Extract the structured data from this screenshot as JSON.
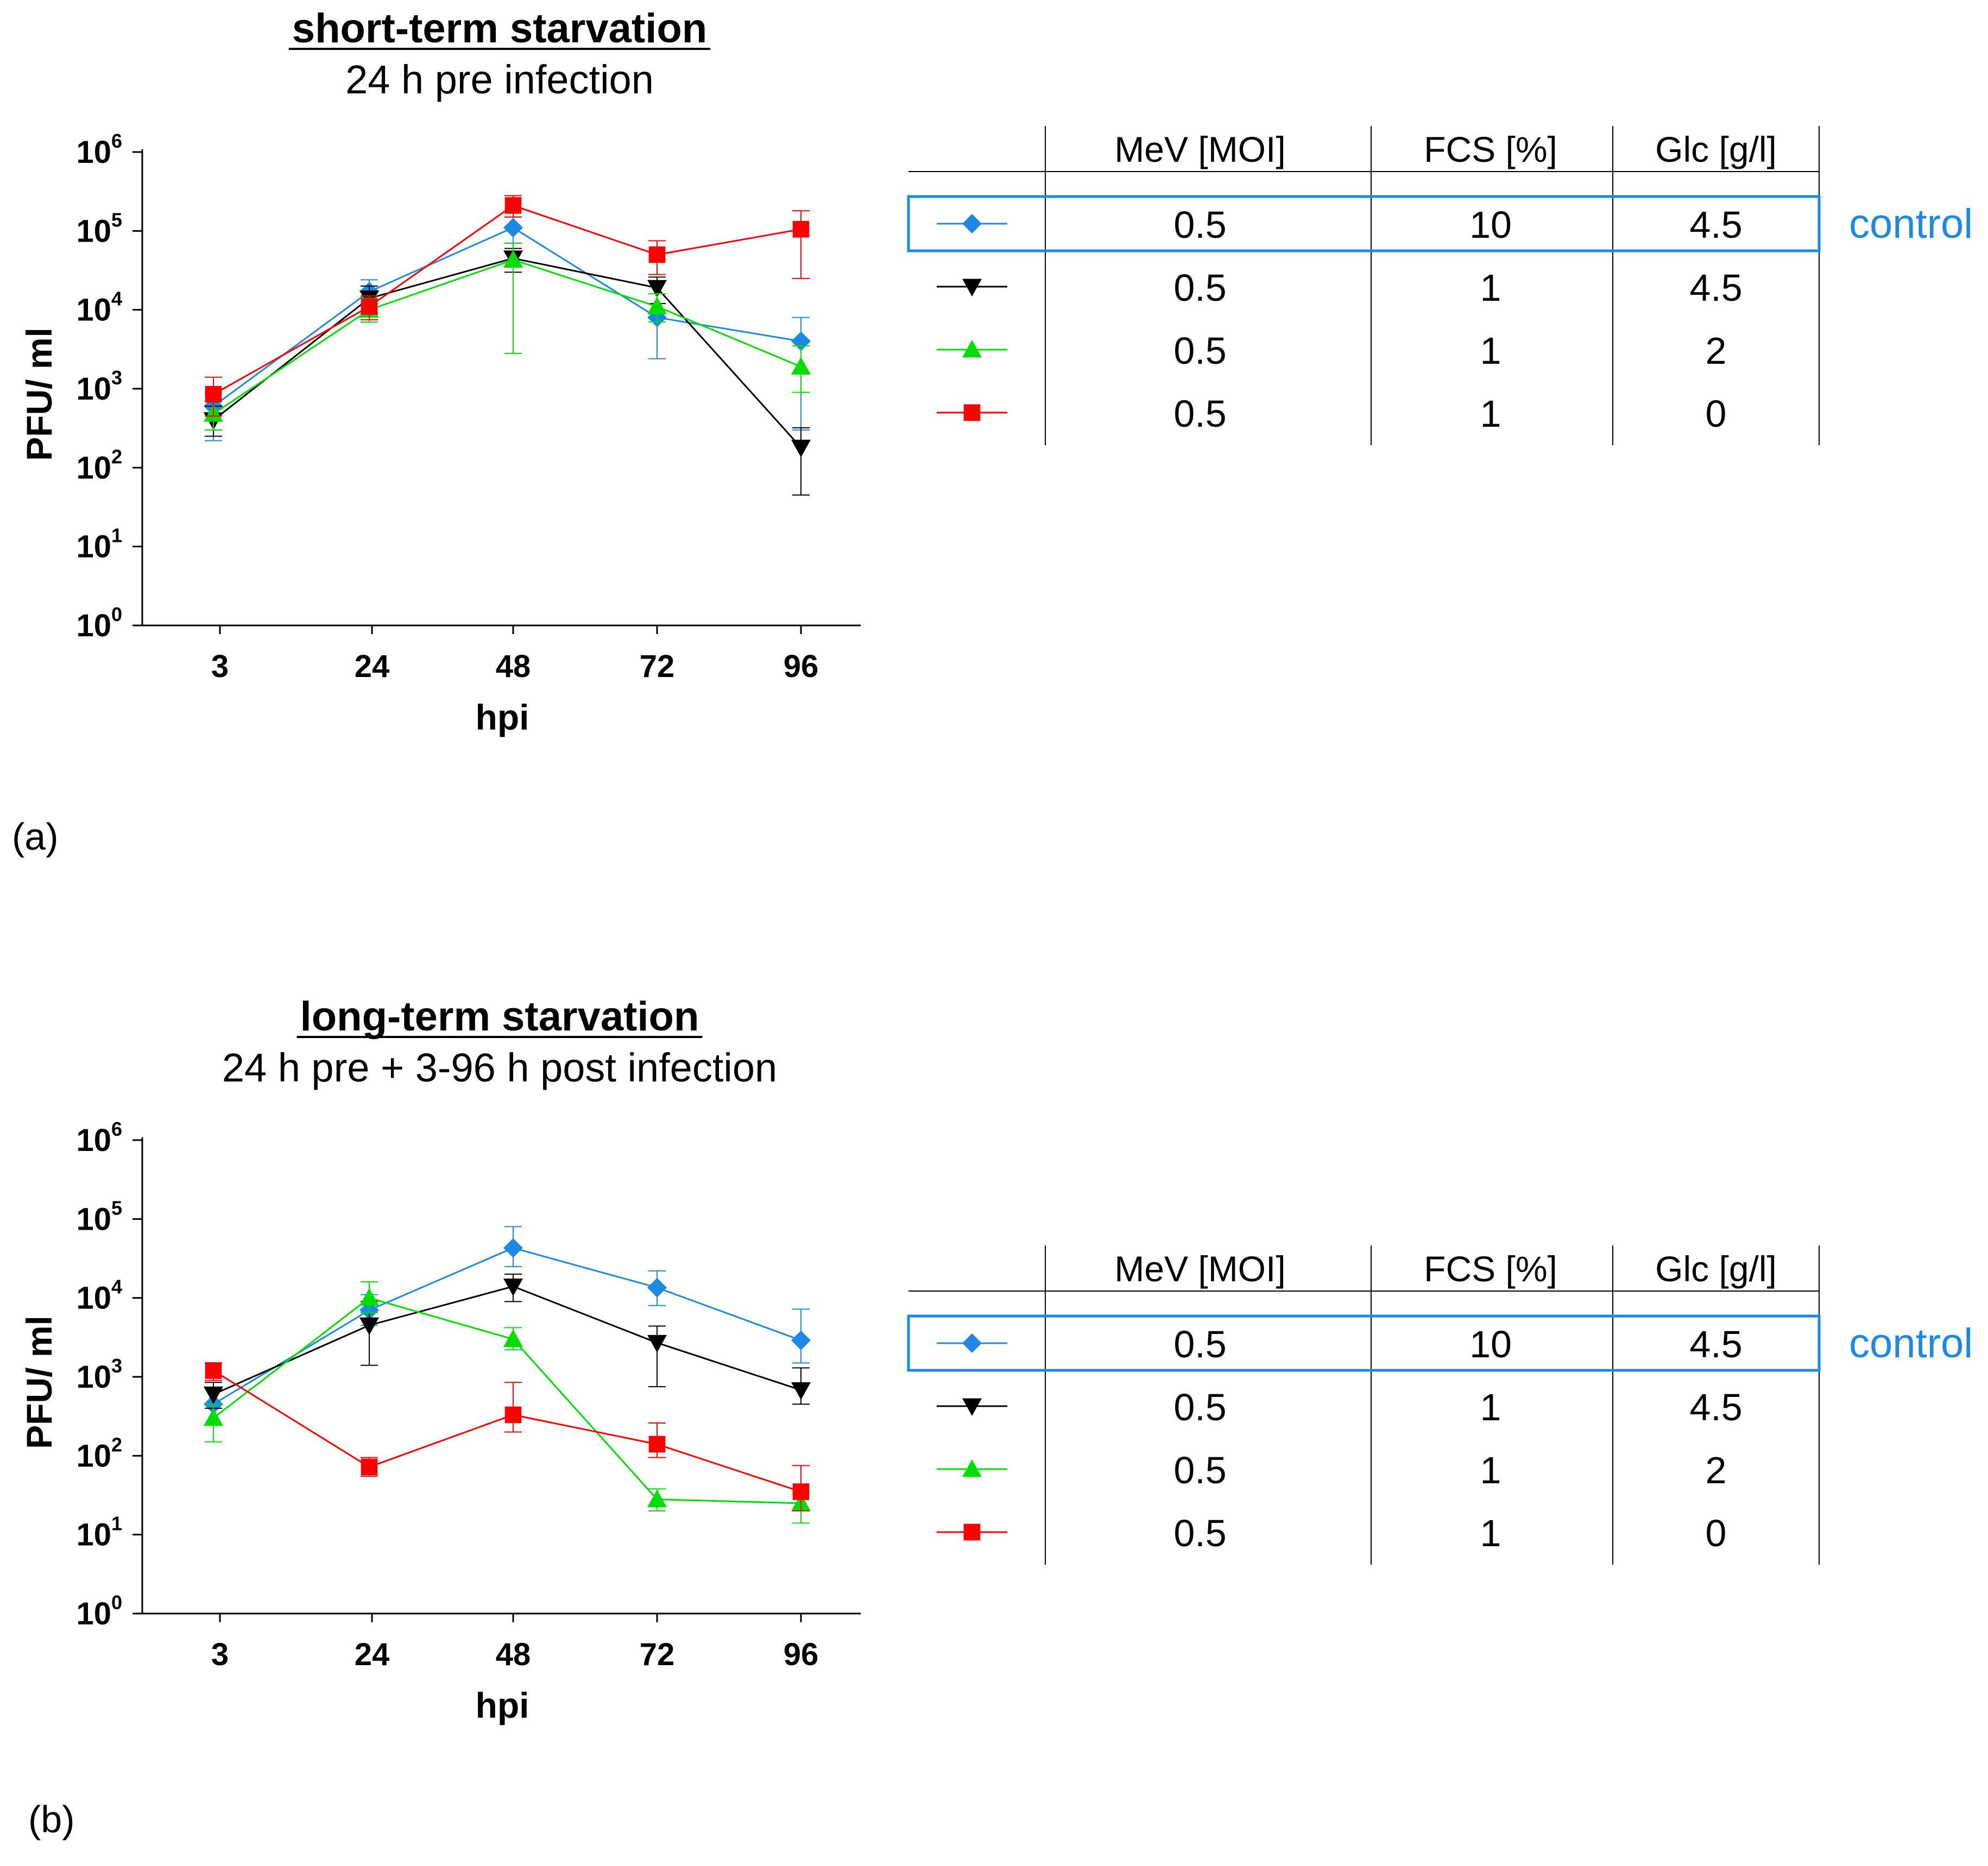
{
  "colors": {
    "control": "#1e88e5",
    "fcs1_glc45": "#000000",
    "fcs1_glc2": "#00dd00",
    "fcs1_glc0": "#ff0000"
  },
  "table": {
    "columns": [
      "MeV [MOI]",
      "FCS [%]",
      "Glc [g/l]"
    ],
    "rows": [
      {
        "marker": "diamond",
        "color": "#1e88e5",
        "cells": [
          "0.5",
          "10",
          "4.5"
        ],
        "highlight": true
      },
      {
        "marker": "triangle-down",
        "color": "#000000",
        "cells": [
          "0.5",
          "1",
          "4.5"
        ],
        "highlight": false
      },
      {
        "marker": "triangle-up",
        "color": "#00dd00",
        "cells": [
          "0.5",
          "1",
          "2"
        ],
        "highlight": false
      },
      {
        "marker": "square",
        "color": "#ff0000",
        "cells": [
          "0.5",
          "1",
          "0"
        ],
        "highlight": false
      }
    ],
    "control_label": "control"
  },
  "chart_data": [
    {
      "type": "line",
      "panel_label": "(a)",
      "title": "short-term starvation",
      "subtitle": "24 h pre infection",
      "xlabel": "hpi",
      "ylabel": "PFU/ ml",
      "yscale": "log",
      "ylim": [
        1,
        1000000
      ],
      "y_ticks": [
        {
          "base": "10",
          "exp": "0"
        },
        {
          "base": "10",
          "exp": "1"
        },
        {
          "base": "10",
          "exp": "2"
        },
        {
          "base": "10",
          "exp": "3"
        },
        {
          "base": "10",
          "exp": "4"
        },
        {
          "base": "10",
          "exp": "5"
        },
        {
          "base": "10",
          "exp": "6"
        }
      ],
      "x": [
        "3",
        "24",
        "48",
        "72",
        "96"
      ],
      "series": [
        {
          "name": "control (MeV 0.5, FCS 10, Glc 4.5)",
          "marker": "diamond",
          "color": "#1e88e5",
          "values": [
            600,
            17000,
            110000,
            8000,
            4000
          ],
          "err_low": [
            220,
            12000,
            70000,
            2400,
            300
          ],
          "err_high": [
            900,
            24000,
            150000,
            12000,
            8000
          ]
        },
        {
          "name": "MeV 0.5, FCS 1, Glc 4.5",
          "marker": "triangle-down",
          "color": "#000000",
          "values": [
            400,
            14000,
            45000,
            19000,
            180
          ],
          "err_low": [
            250,
            9000,
            30000,
            12000,
            45
          ],
          "err_high": [
            600,
            20000,
            60000,
            26000,
            320
          ]
        },
        {
          "name": "MeV 0.5, FCS 1, Glc 2",
          "marker": "triangle-up",
          "color": "#00dd00",
          "values": [
            480,
            10000,
            43000,
            11000,
            1900
          ],
          "err_low": [
            300,
            7000,
            2800,
            7000,
            900
          ],
          "err_high": [
            700,
            14000,
            70000,
            16000,
            3500
          ]
        },
        {
          "name": "MeV 0.5, FCS 1, Glc 0",
          "marker": "square",
          "color": "#ff0000",
          "values": [
            850,
            11000,
            210000,
            50000,
            105000
          ],
          "err_low": [
            450,
            7500,
            150000,
            28000,
            25000
          ],
          "err_high": [
            1400,
            15000,
            280000,
            75000,
            180000
          ]
        }
      ]
    },
    {
      "type": "line",
      "panel_label": "(b)",
      "title": "long-term starvation",
      "subtitle": "24 h pre + 3-96 h post infection",
      "xlabel": "hpi",
      "ylabel": "PFU/ ml",
      "yscale": "log",
      "ylim": [
        1,
        1000000
      ],
      "y_ticks": [
        {
          "base": "10",
          "exp": "0"
        },
        {
          "base": "10",
          "exp": "1"
        },
        {
          "base": "10",
          "exp": "2"
        },
        {
          "base": "10",
          "exp": "3"
        },
        {
          "base": "10",
          "exp": "4"
        },
        {
          "base": "10",
          "exp": "5"
        },
        {
          "base": "10",
          "exp": "6"
        }
      ],
      "x": [
        "3",
        "24",
        "48",
        "72",
        "96"
      ],
      "series": [
        {
          "name": "control (MeV 0.5, FCS 10, Glc 4.5)",
          "marker": "diamond",
          "color": "#1e88e5",
          "values": [
            450,
            7000,
            43000,
            13500,
            2900
          ],
          "err_low": [
            250,
            4500,
            25000,
            8000,
            1500
          ],
          "err_high": [
            700,
            11000,
            80000,
            22000,
            7200
          ]
        },
        {
          "name": "MeV 0.5, FCS 1, Glc 4.5",
          "marker": "triangle-down",
          "color": "#000000",
          "values": [
            600,
            4500,
            14000,
            2700,
            680
          ],
          "err_low": [
            400,
            1400,
            9000,
            750,
            450
          ],
          "err_high": [
            850,
            9000,
            20000,
            4400,
            1300
          ]
        },
        {
          "name": "MeV 0.5, FCS 1, Glc 2",
          "marker": "triangle-up",
          "color": "#00dd00",
          "values": [
            300,
            10000,
            3000,
            28,
            25
          ],
          "err_low": [
            150,
            6500,
            2200,
            20,
            14
          ],
          "err_high": [
            450,
            16000,
            4200,
            38,
            35
          ]
        },
        {
          "name": "MeV 0.5, FCS 1, Glc 0",
          "marker": "square",
          "color": "#ff0000",
          "values": [
            1200,
            72,
            330,
            140,
            35
          ],
          "err_low": [
            900,
            55,
            200,
            95,
            20
          ],
          "err_high": [
            1500,
            95,
            850,
            260,
            75
          ]
        }
      ]
    }
  ]
}
